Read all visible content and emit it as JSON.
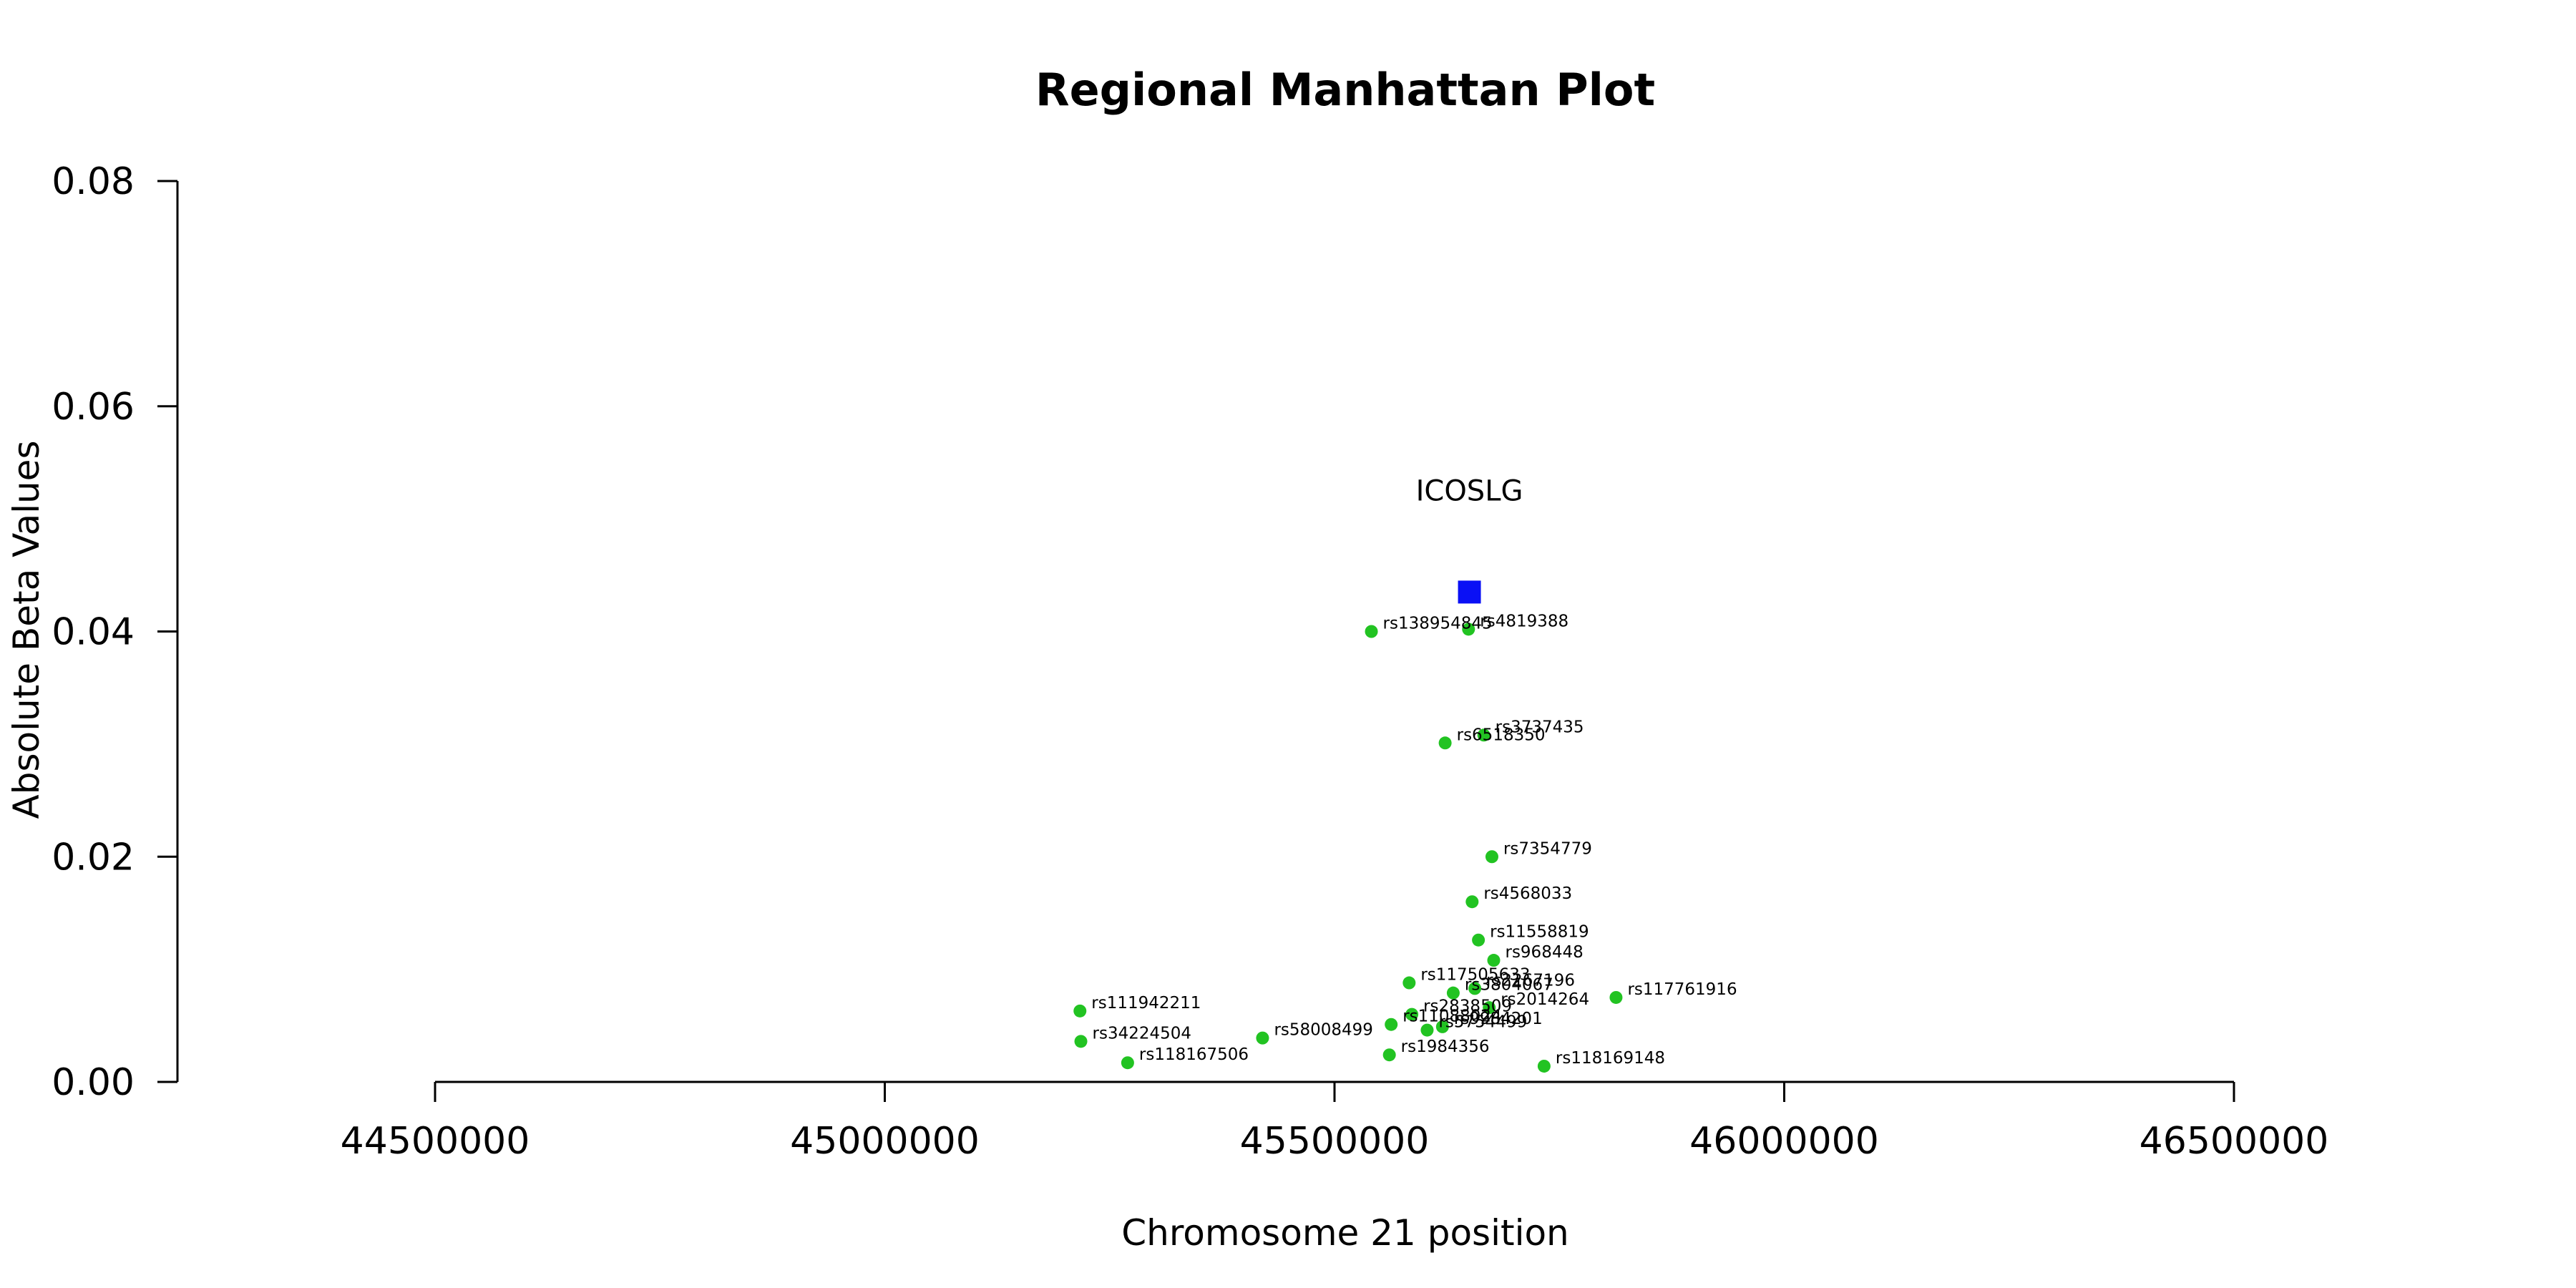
{
  "chart_data": {
    "type": "scatter",
    "title": "Regional Manhattan Plot",
    "xlabel": "Chromosome 21 position",
    "ylabel": "Absolute Beta Values",
    "xlim": [
      44500000,
      46500000
    ],
    "ylim": [
      0,
      0.08
    ],
    "xticks": [
      44500000,
      45000000,
      45500000,
      46000000,
      46500000
    ],
    "yticks": [
      0.0,
      0.02,
      0.04,
      0.06,
      0.08
    ],
    "xtick_labels": [
      "44500000",
      "45000000",
      "45500000",
      "46000000",
      "46500000"
    ],
    "ytick_labels": [
      "0.00",
      "0.02",
      "0.04",
      "0.06",
      "0.08"
    ],
    "grid": false,
    "snp_color": "#22c322",
    "gene_color": "#0a10f5",
    "gene": {
      "label": "ICOSLG",
      "x": 45650000,
      "y": 0.0435
    },
    "snps": [
      {
        "id": "rs138954845",
        "x": 45541000,
        "y": 0.04
      },
      {
        "id": "rs4819388",
        "x": 45649000,
        "y": 0.0402
      },
      {
        "id": "rs3737435",
        "x": 45666000,
        "y": 0.0308
      },
      {
        "id": "rs6518350",
        "x": 45623000,
        "y": 0.0301
      },
      {
        "id": "rs7354779",
        "x": 45675000,
        "y": 0.02
      },
      {
        "id": "rs4568033",
        "x": 45653000,
        "y": 0.016
      },
      {
        "id": "rs11558819",
        "x": 45660000,
        "y": 0.0126
      },
      {
        "id": "rs968448",
        "x": 45677000,
        "y": 0.0108
      },
      {
        "id": "rs117505633",
        "x": 45583000,
        "y": 0.0088
      },
      {
        "id": "rs2267196",
        "x": 45656000,
        "y": 0.0083
      },
      {
        "id": "rs3804067",
        "x": 45632000,
        "y": 0.0079
      },
      {
        "id": "rs117761916",
        "x": 45813000,
        "y": 0.0075
      },
      {
        "id": "rs2014264",
        "x": 45672000,
        "y": 0.0066
      },
      {
        "id": "rs111942211",
        "x": 45217000,
        "y": 0.0063
      },
      {
        "id": "rs2838509",
        "x": 45586000,
        "y": 0.006
      },
      {
        "id": "rs11088024",
        "x": 45563000,
        "y": 0.0051
      },
      {
        "id": "rs9984201",
        "x": 45620000,
        "y": 0.0049
      },
      {
        "id": "rs5754499",
        "x": 45603000,
        "y": 0.0046
      },
      {
        "id": "rs58008499",
        "x": 45420000,
        "y": 0.0039
      },
      {
        "id": "rs34224504",
        "x": 45218000,
        "y": 0.0036
      },
      {
        "id": "rs1984356",
        "x": 45561000,
        "y": 0.0024
      },
      {
        "id": "rs118167506",
        "x": 45270000,
        "y": 0.0017
      },
      {
        "id": "rs118169148",
        "x": 45733000,
        "y": 0.0014
      }
    ]
  }
}
